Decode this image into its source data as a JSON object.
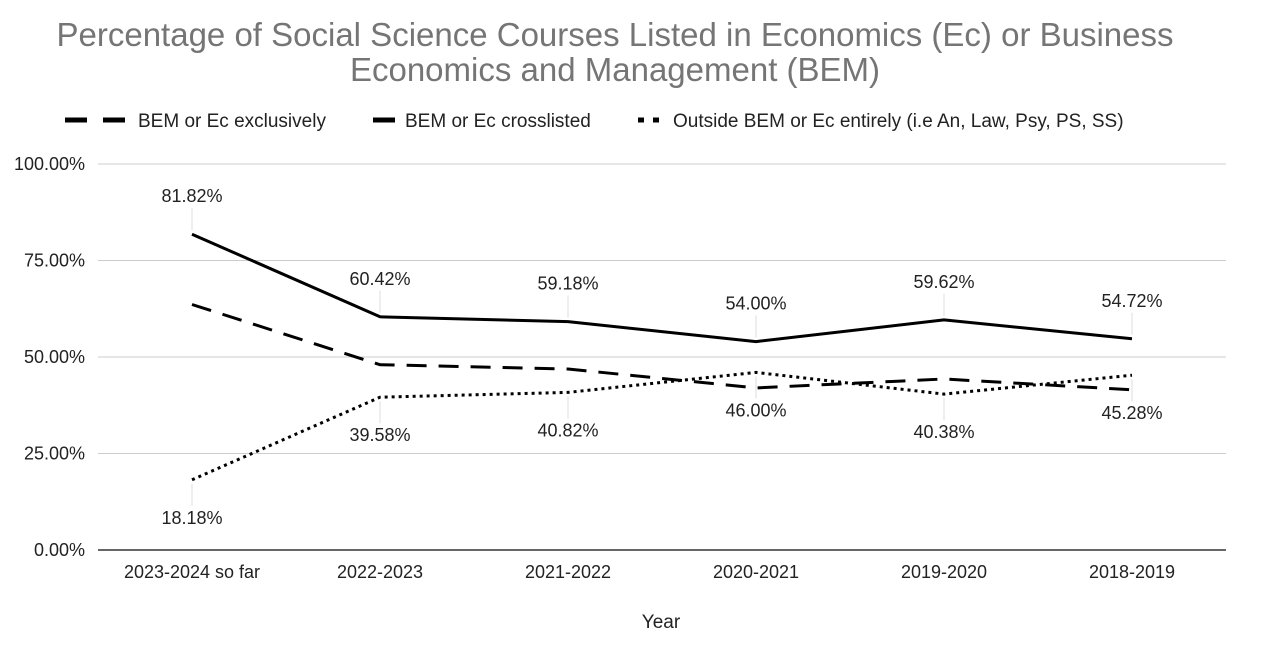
{
  "chart_data": {
    "type": "line",
    "title": "Percentage of Social Science Courses Listed in Economics (Ec) or Business Economics and Management (BEM)",
    "title_lines": [
      "Percentage of Social Science Courses Listed in Economics (Ec) or Business",
      "Economics and Management (BEM)"
    ],
    "xlabel": "Year",
    "ylabel": "",
    "categories": [
      "2023-2024 so far",
      "2022-2023",
      "2021-2022",
      "2020-2021",
      "2019-2020",
      "2018-2019"
    ],
    "ylim": [
      0,
      100
    ],
    "yticks": [
      0,
      25,
      50,
      75,
      100
    ],
    "ytick_labels": [
      "0.00%",
      "25.00%",
      "50.00%",
      "75.00%",
      "100.00%"
    ],
    "grid": true,
    "legend_position": "top",
    "series": [
      {
        "name": "BEM or Ec exclusively",
        "style": "dashed",
        "color": "#000000",
        "values": [
          63.6,
          48.0,
          46.9,
          42.0,
          44.3,
          41.5
        ],
        "labeled": false,
        "labels": []
      },
      {
        "name": "BEM or Ec crosslisted",
        "style": "solid",
        "color": "#000000",
        "values": [
          81.82,
          60.42,
          59.18,
          54.0,
          59.62,
          54.72
        ],
        "labeled": true,
        "labels": [
          "81.82%",
          "60.42%",
          "59.18%",
          "54.00%",
          "59.62%",
          "54.72%"
        ]
      },
      {
        "name": "Outside BEM or Ec entirely (i.e An, Law, Psy, PS, SS)",
        "style": "dotted",
        "color": "#000000",
        "values": [
          18.18,
          39.58,
          40.82,
          46.0,
          40.38,
          45.28
        ],
        "labeled": true,
        "labels": [
          "18.18%",
          "39.58%",
          "40.82%",
          "46.00%",
          "40.38%",
          "45.28%"
        ]
      }
    ]
  }
}
